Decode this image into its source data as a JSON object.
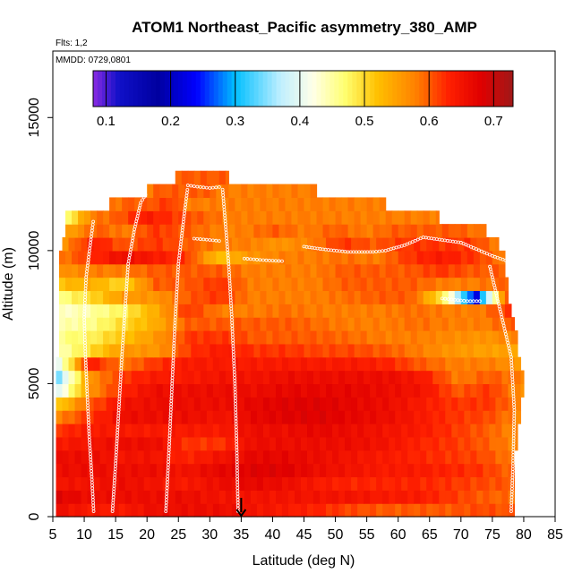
{
  "chart_data": {
    "type": "heatmap",
    "title": "ATOM1 Northeast_Pacific asymmetry_380_AMP",
    "annotations": {
      "flights": "Flts: 1,2",
      "dates": "MMDD: 0729,0801"
    },
    "xlabel": "Latitude (deg N)",
    "ylabel": "Altitude (m)",
    "xlim": [
      5,
      85
    ],
    "ylim": [
      0,
      17500
    ],
    "xticks": [
      5,
      10,
      15,
      20,
      25,
      30,
      35,
      40,
      45,
      50,
      55,
      60,
      65,
      70,
      75,
      80,
      85
    ],
    "yticks": [
      0,
      5000,
      10000,
      15000
    ],
    "colorbar": {
      "min": 0.08,
      "max": 0.73,
      "ticks": [
        0.1,
        0.2,
        0.3,
        0.4,
        0.5,
        0.6,
        0.7
      ],
      "tick_labels": [
        "0.1",
        "0.2",
        "0.3",
        "0.4",
        "0.5",
        "0.6",
        "0.7"
      ],
      "stops": [
        {
          "v": 0.08,
          "c": "#8a2be2"
        },
        {
          "v": 0.12,
          "c": "#1010c8"
        },
        {
          "v": 0.18,
          "c": "#0000a0"
        },
        {
          "v": 0.24,
          "c": "#0000ff"
        },
        {
          "v": 0.3,
          "c": "#00bfff"
        },
        {
          "v": 0.37,
          "c": "#bfefff"
        },
        {
          "v": 0.42,
          "c": "#ffffe8"
        },
        {
          "v": 0.47,
          "c": "#ffff70"
        },
        {
          "v": 0.52,
          "c": "#ffc000"
        },
        {
          "v": 0.58,
          "c": "#ff8000"
        },
        {
          "v": 0.63,
          "c": "#ff2000"
        },
        {
          "v": 0.68,
          "c": "#e00000"
        },
        {
          "v": 0.73,
          "c": "#a01818"
        }
      ]
    },
    "marker_latitude": 35,
    "altitude_bins_m": [
      0,
      500,
      1000,
      1500,
      2000,
      2500,
      3000,
      3500,
      4000,
      4500,
      5000,
      5500,
      6000,
      6500,
      7000,
      7500,
      8000,
      8500,
      9000,
      9500,
      10000,
      10500,
      11000,
      11500,
      12000,
      12500
    ],
    "bin_height_m": 500,
    "rows": [
      {
        "z": 0,
        "x0": 5.5,
        "x1": 78.5,
        "vals": [
          0.66,
          0.64,
          0.64,
          0.66,
          0.66,
          0.66,
          0.65,
          0.64,
          0.63,
          0.61,
          0.6,
          0.6,
          0.6,
          0.61,
          0.6
        ]
      },
      {
        "z": 500,
        "x0": 5.5,
        "x1": 78.5,
        "vals": [
          0.68,
          0.66,
          0.66,
          0.66,
          0.66,
          0.65,
          0.65,
          0.65,
          0.65,
          0.65,
          0.64,
          0.64,
          0.62,
          0.6,
          0.59
        ]
      },
      {
        "z": 1000,
        "x0": 5.5,
        "x1": 78.5,
        "vals": [
          0.65,
          0.65,
          0.66,
          0.65,
          0.64,
          0.66,
          0.67,
          0.66,
          0.64,
          0.63,
          0.63,
          0.63,
          0.62,
          0.61,
          0.6
        ]
      },
      {
        "z": 1500,
        "x0": 5.5,
        "x1": 78.5,
        "vals": [
          0.66,
          0.66,
          0.66,
          0.66,
          0.65,
          0.67,
          0.68,
          0.68,
          0.66,
          0.65,
          0.64,
          0.64,
          0.63,
          0.62,
          0.59
        ]
      },
      {
        "z": 2000,
        "x0": 5.5,
        "x1": 78.5,
        "vals": [
          0.66,
          0.66,
          0.65,
          0.65,
          0.63,
          0.65,
          0.67,
          0.67,
          0.66,
          0.65,
          0.64,
          0.63,
          0.62,
          0.61,
          0.58
        ]
      },
      {
        "z": 2500,
        "x0": 5.5,
        "x1": 79.0,
        "vals": [
          0.64,
          0.65,
          0.66,
          0.66,
          0.62,
          0.62,
          0.66,
          0.66,
          0.66,
          0.66,
          0.65,
          0.63,
          0.62,
          0.6,
          0.57
        ]
      },
      {
        "z": 3000,
        "x0": 5.5,
        "x1": 79.0,
        "vals": [
          0.62,
          0.64,
          0.64,
          0.64,
          0.64,
          0.64,
          0.66,
          0.66,
          0.67,
          0.66,
          0.65,
          0.64,
          0.62,
          0.6,
          0.57
        ]
      },
      {
        "z": 3500,
        "x0": 5.5,
        "x1": 79.5,
        "vals": [
          0.57,
          0.62,
          0.66,
          0.66,
          0.66,
          0.65,
          0.67,
          0.68,
          0.68,
          0.67,
          0.66,
          0.64,
          0.62,
          0.61,
          0.57
        ]
      },
      {
        "z": 4000,
        "x0": 5.5,
        "x1": 79.5,
        "vals": [
          0.5,
          0.6,
          0.65,
          0.66,
          0.66,
          0.66,
          0.67,
          0.68,
          0.68,
          0.67,
          0.66,
          0.64,
          0.62,
          0.62,
          0.58
        ]
      },
      {
        "z": 4500,
        "x0": 5.5,
        "x1": 80.0,
        "vals": [
          0.38,
          0.56,
          0.63,
          0.66,
          0.66,
          0.66,
          0.66,
          0.67,
          0.67,
          0.67,
          0.66,
          0.65,
          0.6,
          0.62,
          0.56
        ]
      },
      {
        "z": 5000,
        "x0": 5.5,
        "x1": 80.0,
        "vals": [
          0.33,
          0.56,
          0.62,
          0.64,
          0.64,
          0.65,
          0.65,
          0.66,
          0.66,
          0.66,
          0.66,
          0.64,
          0.58,
          0.6,
          0.58
        ]
      },
      {
        "z": 5500,
        "x0": 5.5,
        "x1": 79.5,
        "vals": [
          0.38,
          0.64,
          0.58,
          0.62,
          0.64,
          0.64,
          0.64,
          0.64,
          0.64,
          0.64,
          0.63,
          0.6,
          0.58,
          0.58,
          0.56
        ]
      },
      {
        "z": 6000,
        "x0": 6.0,
        "x1": 79.0,
        "vals": [
          0.44,
          0.5,
          0.56,
          0.56,
          0.62,
          0.64,
          0.62,
          0.62,
          0.61,
          0.61,
          0.6,
          0.58,
          0.56,
          0.55,
          0.55
        ]
      },
      {
        "z": 6500,
        "x0": 6.0,
        "x1": 79.0,
        "vals": [
          0.46,
          0.48,
          0.52,
          0.56,
          0.62,
          0.62,
          0.6,
          0.6,
          0.6,
          0.59,
          0.58,
          0.58,
          0.57,
          0.56,
          0.58
        ]
      },
      {
        "z": 7000,
        "x0": 6.0,
        "x1": 78.5,
        "vals": [
          0.44,
          0.46,
          0.5,
          0.54,
          0.6,
          0.6,
          0.6,
          0.6,
          0.59,
          0.58,
          0.58,
          0.59,
          0.58,
          0.58,
          0.6
        ]
      },
      {
        "z": 7500,
        "x0": 6.0,
        "x1": 78.0,
        "vals": [
          0.43,
          0.45,
          0.48,
          0.54,
          0.62,
          0.58,
          0.58,
          0.59,
          0.58,
          0.58,
          0.58,
          0.59,
          0.58,
          0.58,
          0.62
        ]
      },
      {
        "z": 8000,
        "x0": 6.0,
        "x1": 77.5,
        "vals": [
          0.46,
          0.5,
          0.56,
          0.56,
          0.6,
          0.62,
          0.58,
          0.58,
          0.58,
          0.59,
          0.6,
          0.6,
          0.48,
          0.22,
          0.62
        ]
      },
      {
        "z": 8500,
        "x0": 6.0,
        "x1": 77.5,
        "vals": [
          0.52,
          0.54,
          0.5,
          0.6,
          0.6,
          0.62,
          0.58,
          0.58,
          0.58,
          0.6,
          0.6,
          0.6,
          0.58,
          0.58,
          0.6
        ]
      },
      {
        "z": 9000,
        "x0": 6.0,
        "x1": 77.0,
        "vals": [
          0.56,
          0.58,
          0.58,
          0.6,
          0.6,
          0.6,
          0.58,
          0.58,
          0.58,
          0.6,
          0.6,
          0.6,
          0.62,
          0.6,
          0.6
        ]
      },
      {
        "z": 9500,
        "x0": 6.0,
        "x1": 77.0,
        "vals": [
          0.58,
          0.62,
          0.66,
          0.64,
          0.62,
          0.52,
          0.56,
          0.58,
          0.58,
          0.59,
          0.58,
          0.62,
          0.64,
          0.62,
          0.58
        ]
      },
      {
        "z": 10000,
        "x0": 6.5,
        "x1": 76.0,
        "vals": [
          0.56,
          0.64,
          0.6,
          0.62,
          0.6,
          0.58,
          0.58,
          0.56,
          0.58,
          0.62,
          0.6,
          0.62,
          0.62,
          0.62,
          0.58
        ]
      },
      {
        "z": 10500,
        "x0": 7.0,
        "x1": 74.0,
        "vals": [
          0.54,
          0.6,
          0.58,
          0.62,
          0.6,
          0.58,
          0.58,
          0.6,
          0.58,
          0.6,
          0.58,
          0.6,
          0.6,
          0.6,
          0.58
        ]
      },
      {
        "z": 11000,
        "x0": 7.0,
        "x1": 66.5,
        "vals": [
          0.46,
          0.58,
          0.6,
          0.64,
          0.62,
          0.6,
          0.58,
          0.58,
          0.58,
          0.58,
          0.58,
          0.58,
          0.58,
          0.58,
          0.58
        ]
      },
      {
        "z": 11500,
        "x0": 14.0,
        "x1": 58.0,
        "vals": [
          0.58,
          0.6,
          0.6,
          0.62,
          0.58,
          0.58,
          0.58,
          0.58,
          0.58,
          0.58,
          0.58,
          0.58,
          0.58,
          0.58,
          0.58
        ]
      },
      {
        "z": 12000,
        "x0": 20.0,
        "x1": 47.0,
        "vals": [
          0.58,
          0.6,
          0.6,
          0.6,
          0.6,
          0.6,
          0.58,
          0.58,
          0.58,
          0.58,
          0.58,
          0.58,
          0.58,
          0.58,
          0.58
        ]
      },
      {
        "z": 12500,
        "x0": 24.5,
        "x1": 33.0,
        "vals": [
          0.6,
          0.6,
          0.6,
          0.6,
          0.6,
          0.6,
          0.6,
          0.6,
          0.6,
          0.6,
          0.6,
          0.6,
          0.6,
          0.6,
          0.6
        ]
      }
    ],
    "flight_tracks": [
      {
        "name": "ascent-descent-11",
        "points": [
          [
            11.5,
            200
          ],
          [
            11.2,
            1500
          ],
          [
            10.8,
            3000
          ],
          [
            10.5,
            4500
          ],
          [
            10.2,
            6000
          ],
          [
            10.0,
            7500
          ],
          [
            10.3,
            9000
          ],
          [
            11.0,
            10300
          ],
          [
            11.5,
            11200
          ]
        ]
      },
      {
        "name": "ascent-descent-15",
        "points": [
          [
            14.5,
            200
          ],
          [
            15.0,
            2000
          ],
          [
            15.5,
            4000
          ],
          [
            16.0,
            6000
          ],
          [
            16.5,
            7800
          ],
          [
            17.0,
            9500
          ],
          [
            18.0,
            10800
          ],
          [
            19.0,
            11800
          ],
          [
            20.0,
            12200
          ]
        ]
      },
      {
        "name": "ascent-descent-24",
        "points": [
          [
            23.0,
            200
          ],
          [
            23.5,
            2500
          ],
          [
            24.0,
            5000
          ],
          [
            24.5,
            7500
          ],
          [
            25.0,
            9500
          ],
          [
            26.0,
            11500
          ],
          [
            26.5,
            12400
          ]
        ]
      },
      {
        "name": "ascent-descent-34",
        "points": [
          [
            34.5,
            200
          ],
          [
            34.3,
            2500
          ],
          [
            34.0,
            5000
          ],
          [
            33.5,
            7500
          ],
          [
            33.0,
            9500
          ],
          [
            32.5,
            11000
          ],
          [
            32.0,
            12400
          ]
        ]
      },
      {
        "name": "cruise-12500",
        "points": [
          [
            26.5,
            12450
          ],
          [
            28.0,
            12400
          ],
          [
            30.0,
            12350
          ],
          [
            32.0,
            12400
          ]
        ]
      },
      {
        "name": "cruise-10300",
        "points": [
          [
            27.5,
            10450
          ],
          [
            30.0,
            10400
          ],
          [
            32.0,
            10350
          ]
        ]
      },
      {
        "name": "cruise-9700",
        "points": [
          [
            35.5,
            9700
          ],
          [
            38.0,
            9650
          ],
          [
            40.0,
            9620
          ],
          [
            42.0,
            9600
          ]
        ]
      },
      {
        "name": "cruise-north",
        "points": [
          [
            45.0,
            10150
          ],
          [
            48.0,
            10050
          ],
          [
            52.0,
            9950
          ],
          [
            56.0,
            9950
          ],
          [
            58.0,
            10000
          ],
          [
            61.0,
            10200
          ],
          [
            64.0,
            10500
          ],
          [
            67.0,
            10400
          ],
          [
            70.0,
            10300
          ],
          [
            72.0,
            10100
          ],
          [
            75.0,
            9800
          ],
          [
            77.5,
            9600
          ]
        ]
      },
      {
        "name": "lowcruise-8200",
        "points": [
          [
            67.0,
            8200
          ],
          [
            69.0,
            8150
          ],
          [
            71.0,
            8100
          ],
          [
            73.5,
            8100
          ]
        ]
      },
      {
        "name": "ascent-descent-78",
        "points": [
          [
            78.0,
            200
          ],
          [
            78.3,
            2000
          ],
          [
            78.5,
            4000
          ],
          [
            78.0,
            6000
          ],
          [
            76.5,
            7500
          ],
          [
            75.5,
            8500
          ],
          [
            74.5,
            9500
          ]
        ]
      }
    ]
  }
}
